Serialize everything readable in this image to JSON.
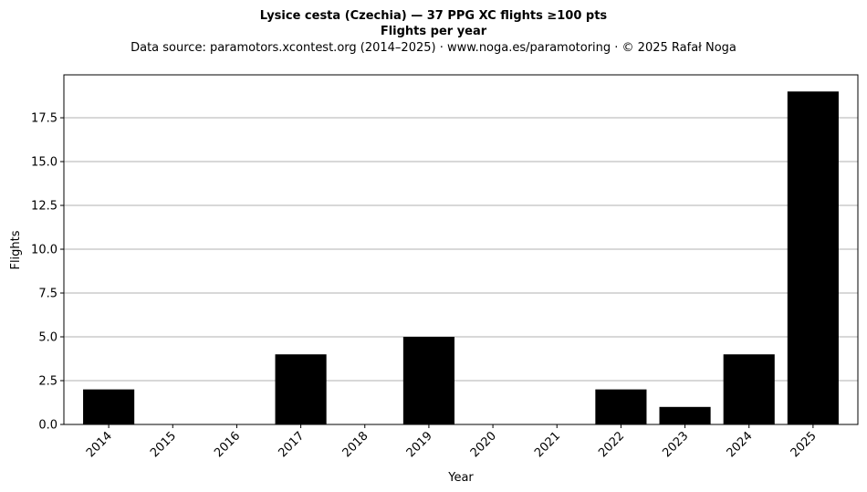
{
  "titles": {
    "line1": "Lysice cesta (Czechia)  —  37 PPG XC flights ≥100 pts",
    "line2": "Flights per year",
    "line3": "Data source: paramotors.xcontest.org (2014–2025)  ·  www.noga.es/paramotoring  ·  © 2025 Rafał Noga"
  },
  "chart_data": {
    "type": "bar",
    "categories": [
      "2014",
      "2015",
      "2016",
      "2017",
      "2018",
      "2019",
      "2020",
      "2021",
      "2022",
      "2023",
      "2024",
      "2025"
    ],
    "values": [
      2,
      0,
      0,
      4,
      0,
      5,
      0,
      0,
      2,
      1,
      4,
      19
    ],
    "title": "Lysice cesta (Czechia)  —  37 PPG XC flights ≥100 pts",
    "subtitle": "Flights per year",
    "xlabel": "Year",
    "ylabel": "Flights",
    "ylim": [
      0,
      19.95
    ],
    "yticks": [
      "0.0",
      "2.5",
      "5.0",
      "7.5",
      "10.0",
      "12.5",
      "15.0",
      "17.5"
    ],
    "grid": "y",
    "bar_color": "#000000",
    "grid_color": "#b0b0b0"
  }
}
